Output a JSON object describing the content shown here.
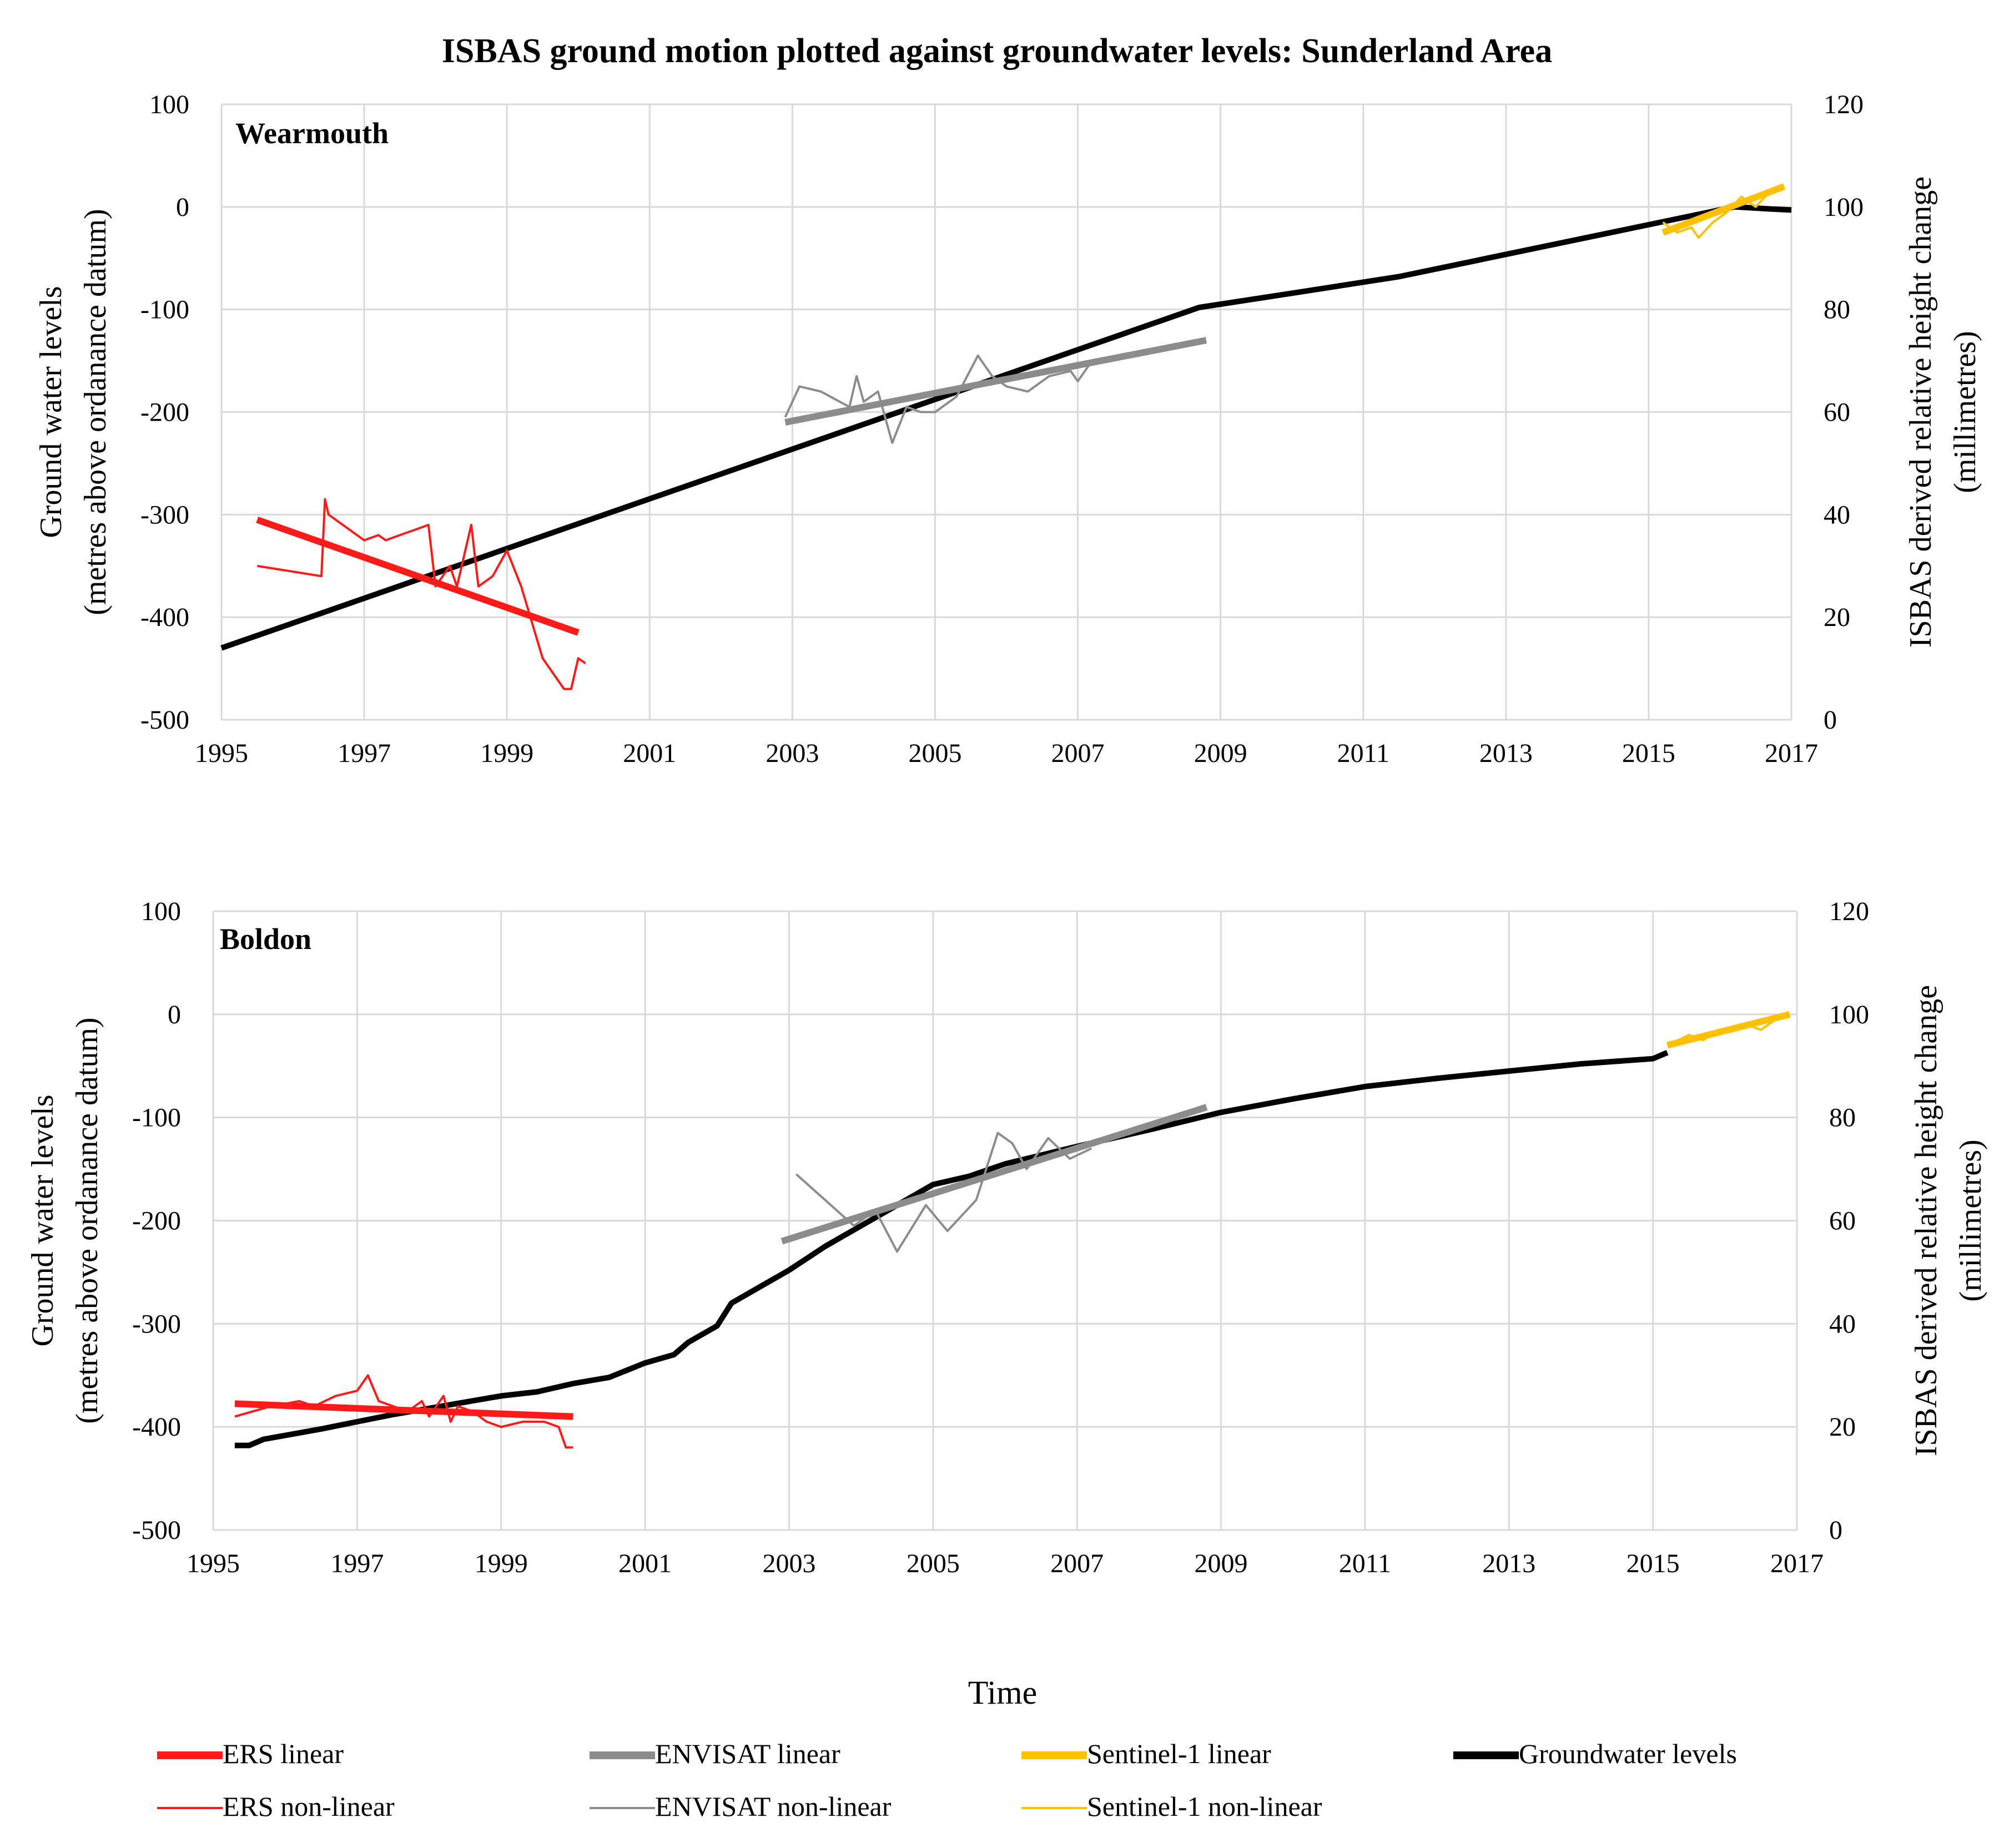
{
  "title": "ISBAS ground motion plotted against groundwater levels: Sunderland Area",
  "x_axis_title": "Time",
  "colors": {
    "ers": "#ff1a1a",
    "envisat": "#8c8c8c",
    "sentinel": "#ffc000",
    "groundwater": "#000000",
    "grid": "#d9d9d9"
  },
  "legend": [
    {
      "key": "ers_linear",
      "label": "ERS linear",
      "color": "#ff1a1a",
      "thick": true
    },
    {
      "key": "envisat_linear",
      "label": "ENVISAT linear",
      "color": "#8c8c8c",
      "thick": true
    },
    {
      "key": "sentinel_linear",
      "label": "Sentinel-1 linear",
      "color": "#ffc000",
      "thick": true
    },
    {
      "key": "groundwater",
      "label": "Groundwater levels",
      "color": "#000000",
      "thick": true
    },
    {
      "key": "ers_nonlinear",
      "label": "ERS non-linear",
      "color": "#ff1a1a",
      "thick": false
    },
    {
      "key": "envisat_nonlinear",
      "label": "ENVISAT non-linear",
      "color": "#8c8c8c",
      "thick": false
    },
    {
      "key": "sentinel_nonlinear",
      "label": "Sentinel-1 non-linear",
      "color": "#ffc000",
      "thick": false
    }
  ],
  "chart_data": [
    {
      "type": "line",
      "panel_label": "Wearmouth",
      "ylabel_left": [
        "Ground water levels",
        "(metres above ordanance datum)"
      ],
      "ylabel_right": [
        "ISBAS derived relative height change",
        "(millimetres)"
      ],
      "xlim": [
        1995,
        2017
      ],
      "ylim_left": [
        -500,
        100
      ],
      "ylim_right": [
        0,
        120
      ],
      "x_ticks": [
        "1995",
        "1997",
        "1999",
        "2001",
        "2003",
        "2005",
        "2007",
        "2009",
        "2011",
        "2013",
        "2015",
        "2017"
      ],
      "y_ticks_left": [
        "-500",
        "-400",
        "-300",
        "-200",
        "-100",
        "0",
        "100"
      ],
      "y_ticks_right": [
        "0",
        "20",
        "40",
        "60",
        "80",
        "100",
        "120"
      ],
      "series": [
        {
          "name": "Groundwater levels",
          "axis": "left",
          "style": "groundwater",
          "x": [
            1995.0,
            2008.7,
            2010.2,
            2011.5,
            2016.2,
            2016.7,
            2017.0
          ],
          "y": [
            -430,
            -98,
            -82,
            -68,
            0,
            -2,
            -3
          ]
        },
        {
          "name": "ERS non-linear",
          "axis": "right",
          "style": "ers_nonlinear",
          "x": [
            1995.5,
            1996.4,
            1996.45,
            1996.5,
            1997.0,
            1997.2,
            1997.3,
            1997.5,
            1997.7,
            1997.9,
            1998.0,
            1998.2,
            1998.3,
            1998.5,
            1998.6,
            1998.8,
            1999.0,
            1999.2,
            1999.5,
            1999.8,
            1999.9,
            2000.0,
            2000.1
          ],
          "y": [
            30,
            28,
            43,
            40,
            35,
            36,
            35,
            36,
            37,
            38,
            26,
            30,
            26,
            38,
            26,
            28,
            33,
            26,
            12,
            6,
            6,
            12,
            11
          ]
        },
        {
          "name": "ERS linear",
          "axis": "right",
          "style": "ers_linear",
          "x": [
            1995.5,
            2000.0
          ],
          "y": [
            39,
            17
          ]
        },
        {
          "name": "ENVISAT non-linear",
          "axis": "right",
          "style": "envisat_nonlinear",
          "x": [
            2002.9,
            2003.1,
            2003.4,
            2003.8,
            2003.9,
            2004.0,
            2004.2,
            2004.4,
            2004.6,
            2004.8,
            2005.0,
            2005.3,
            2005.6,
            2005.8,
            2006.0,
            2006.3,
            2006.6,
            2006.9,
            2007.0,
            2007.2
          ],
          "y": [
            59,
            65,
            64,
            61,
            67,
            62,
            64,
            54,
            61,
            60,
            60,
            63,
            71,
            67,
            65,
            64,
            67,
            68,
            66,
            70
          ]
        },
        {
          "name": "ENVISAT linear",
          "axis": "right",
          "style": "envisat_linear",
          "x": [
            2002.9,
            2008.8
          ],
          "y": [
            58,
            74
          ]
        },
        {
          "name": "Sentinel-1 non-linear",
          "axis": "right",
          "style": "sentinel_nonlinear",
          "x": [
            2015.2,
            2015.4,
            2015.6,
            2015.7,
            2015.9,
            2016.1,
            2016.3,
            2016.5,
            2016.7,
            2016.9
          ],
          "y": [
            97,
            95,
            96,
            94,
            97,
            99,
            102,
            100,
            103,
            104
          ]
        },
        {
          "name": "Sentinel-1 linear",
          "axis": "right",
          "style": "sentinel_linear",
          "x": [
            2015.2,
            2016.9
          ],
          "y": [
            95,
            104
          ]
        }
      ]
    },
    {
      "type": "line",
      "panel_label": "Boldon",
      "ylabel_left": [
        "Ground water levels",
        "(metres above ordanance datum)"
      ],
      "ylabel_right": [
        "ISBAS derived relative height change",
        "(millimetres)"
      ],
      "xlim": [
        1995,
        2017
      ],
      "ylim_left": [
        -500,
        100
      ],
      "ylim_right": [
        0,
        120
      ],
      "x_ticks": [
        "1995",
        "1997",
        "1999",
        "2001",
        "2003",
        "2005",
        "2007",
        "2009",
        "2011",
        "2013",
        "2015",
        "2017"
      ],
      "y_ticks_left": [
        "-500",
        "-400",
        "-300",
        "-200",
        "-100",
        "0",
        "100"
      ],
      "y_ticks_right": [
        "0",
        "20",
        "40",
        "60",
        "80",
        "100",
        "120"
      ],
      "series": [
        {
          "name": "Groundwater levels",
          "axis": "left",
          "style": "groundwater",
          "x": [
            1995.3,
            1995.5,
            1995.7,
            1996.5,
            1997.5,
            1998.5,
            1999.0,
            1999.5,
            2000.0,
            2000.5,
            2001.0,
            2001.4,
            2001.6,
            2002.0,
            2002.2,
            2002.5,
            2003.0,
            2003.5,
            2004.0,
            2004.5,
            2005.0,
            2005.5,
            2006.0,
            2007.0,
            2008.0,
            2009.0,
            2010.0,
            2011.0,
            2012.0,
            2013.0,
            2014.0,
            2015.0,
            2015.2
          ],
          "y": [
            -418,
            -418,
            -412,
            -402,
            -388,
            -376,
            -370,
            -366,
            -358,
            -352,
            -338,
            -330,
            -318,
            -302,
            -280,
            -268,
            -248,
            -225,
            -205,
            -185,
            -165,
            -157,
            -145,
            -128,
            -112,
            -95,
            -82,
            -70,
            -62,
            -55,
            -48,
            -43,
            -37
          ]
        },
        {
          "name": "ERS non-linear",
          "axis": "right",
          "style": "ers_nonlinear",
          "x": [
            1995.3,
            1995.8,
            1996.2,
            1996.4,
            1996.7,
            1997.0,
            1997.15,
            1997.3,
            1997.5,
            1997.7,
            1997.9,
            1998.0,
            1998.2,
            1998.3,
            1998.4,
            1998.6,
            1998.8,
            1999.0,
            1999.3,
            1999.6,
            1999.8,
            1999.9,
            2000.0
          ],
          "y": [
            22,
            24,
            25,
            24,
            26,
            27,
            30,
            25,
            24,
            23,
            25,
            22,
            26,
            21,
            24,
            23,
            21,
            20,
            21,
            21,
            20,
            16,
            16
          ]
        },
        {
          "name": "ERS linear",
          "axis": "right",
          "style": "ers_linear",
          "x": [
            1995.3,
            2000.0
          ],
          "y": [
            24.5,
            22
          ]
        },
        {
          "name": "ENVISAT non-linear",
          "axis": "right",
          "style": "envisat_nonlinear",
          "x": [
            2003.1,
            2003.5,
            2003.9,
            2004.2,
            2004.5,
            2004.9,
            2005.2,
            2005.6,
            2005.9,
            2006.1,
            2006.3,
            2006.6,
            2006.9,
            2007.2
          ],
          "y": [
            69,
            64,
            59,
            62,
            54,
            63,
            58,
            64,
            77,
            75,
            70,
            76,
            72,
            74
          ]
        },
        {
          "name": "ENVISAT linear",
          "axis": "right",
          "style": "envisat_linear",
          "x": [
            2002.9,
            2008.8
          ],
          "y": [
            56,
            82
          ]
        },
        {
          "name": "Sentinel-1 non-linear",
          "axis": "right",
          "style": "sentinel_nonlinear",
          "x": [
            2015.2,
            2015.5,
            2015.7,
            2015.9,
            2016.1,
            2016.3,
            2016.5,
            2016.7,
            2016.9
          ],
          "y": [
            94,
            96,
            95,
            97,
            97,
            98,
            97,
            99,
            100
          ]
        },
        {
          "name": "Sentinel-1 linear",
          "axis": "right",
          "style": "sentinel_linear",
          "x": [
            2015.2,
            2016.9
          ],
          "y": [
            94,
            100
          ]
        }
      ]
    }
  ]
}
